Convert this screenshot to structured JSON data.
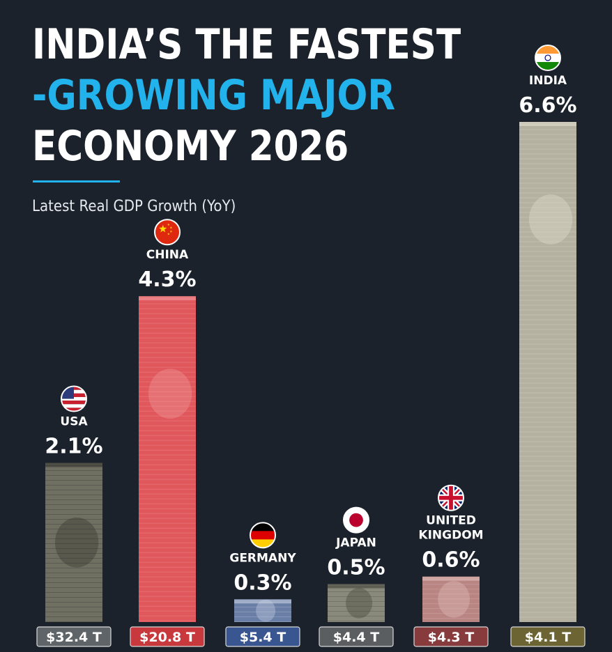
{
  "title": {
    "line1": "INDIA’S THE FASTEST",
    "line2": "-GROWING MAJOR",
    "line3": "ECONOMY 2026"
  },
  "subtitle": "Latest Real GDP Growth (YoY)",
  "colors": {
    "background": "#1b222b",
    "accent": "#22b2ec"
  },
  "chart_data": {
    "type": "bar",
    "title": "INDIA’S THE FASTEST -GROWING MAJOR ECONOMY 2026",
    "subtitle": "Latest Real GDP Growth (YoY)",
    "categories": [
      "USA",
      "CHINA",
      "GERMANY",
      "JAPAN",
      "UNITED KINGDOM",
      "INDIA"
    ],
    "category_lines": [
      [
        "USA"
      ],
      [
        "CHINA"
      ],
      [
        "GERMANY"
      ],
      [
        "JAPAN"
      ],
      [
        "UNITED",
        "KINGDOM"
      ],
      [
        "INDIA"
      ]
    ],
    "values": [
      2.1,
      4.3,
      0.3,
      0.5,
      0.6,
      6.6
    ],
    "value_labels": [
      "2.1%",
      "4.3%",
      "0.3%",
      "0.5%",
      "0.6%",
      "6.6%"
    ],
    "gdp_labels": [
      "$32.4 T",
      "$20.8 T",
      "$5.4 T",
      "$4.4 T",
      "$4.3 T",
      "$4.1 T"
    ],
    "gdp_label_colors": [
      "#5f6468",
      "#c8393d",
      "#3a5690",
      "#5b5e60",
      "#873b3d",
      "#6c6432"
    ],
    "bar_colors": [
      "#6f6f62",
      "#e0575c",
      "#6a7fa6",
      "#8a8a7c",
      "#b88583",
      "#b5b1a0"
    ],
    "bar_accent_colors": [
      "#2d2d28",
      "#f2a3a3",
      "#cfd8e8",
      "#3a3a32",
      "#e6c6c2",
      "#e8e4d6"
    ],
    "flags": [
      "us-flag-icon",
      "china-flag-icon",
      "germany-flag-icon",
      "japan-flag-icon",
      "uk-flag-icon",
      "india-flag-icon"
    ],
    "ylim": [
      0,
      6.6
    ],
    "grid": false,
    "legend": "none"
  }
}
